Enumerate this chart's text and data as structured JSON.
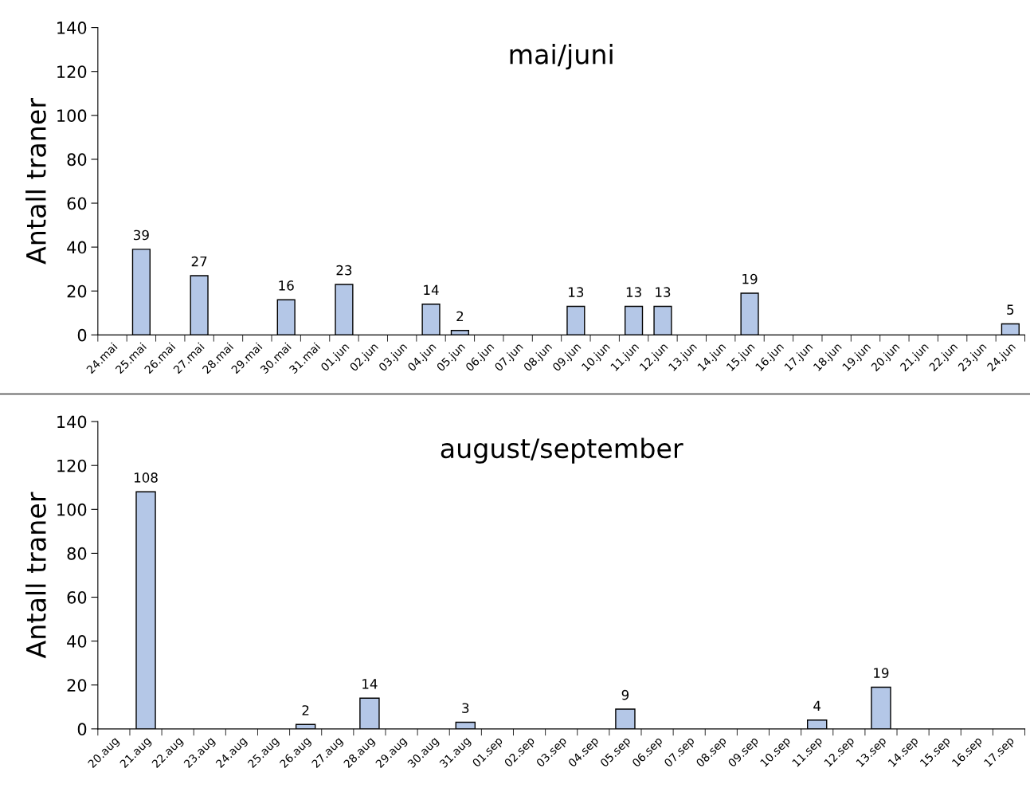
{
  "chart_data": [
    {
      "type": "bar",
      "title": "mai/juni",
      "ylabel": "Antall traner",
      "categories": [
        "24.mai",
        "25.mai",
        "26.mai",
        "27.mai",
        "28.mai",
        "29.mai",
        "30.mai",
        "31.mai",
        "01.jun",
        "02.jun",
        "03.jun",
        "04.jun",
        "05.jun",
        "06.jun",
        "07.jun",
        "08.jun",
        "09.jun",
        "10.jun",
        "11.jun",
        "12.jun",
        "13.jun",
        "14.jun",
        "15.jun",
        "16.jun",
        "17.jun",
        "18.jun",
        "19.jun",
        "20.jun",
        "21.jun",
        "22.jun",
        "23.jun",
        "24.jun"
      ],
      "values": [
        0,
        39,
        0,
        27,
        0,
        0,
        16,
        0,
        23,
        0,
        0,
        14,
        2,
        0,
        0,
        0,
        13,
        0,
        13,
        13,
        0,
        0,
        19,
        0,
        0,
        0,
        0,
        0,
        0,
        0,
        0,
        5
      ],
      "value_labels": [
        null,
        "39",
        null,
        "27",
        null,
        null,
        "16",
        null,
        "23",
        null,
        null,
        "14",
        "2",
        null,
        null,
        null,
        "13",
        null,
        "13",
        "13",
        null,
        null,
        "19",
        null,
        null,
        null,
        null,
        null,
        null,
        null,
        null,
        "5"
      ],
      "color": "#b4c7e7",
      "ylim": [
        0,
        140
      ],
      "yticks": [
        0,
        20,
        40,
        60,
        80,
        100,
        120,
        140
      ],
      "grid": false,
      "legend": false
    },
    {
      "type": "bar",
      "title": "august/september",
      "ylabel": "Antall traner",
      "categories": [
        "20.aug",
        "21.aug",
        "22.aug",
        "23.aug",
        "24.aug",
        "25.aug",
        "26.aug",
        "27.aug",
        "28.aug",
        "29.aug",
        "30.aug",
        "31.aug",
        "01.sep",
        "02.sep",
        "03.sep",
        "04.sep",
        "05.sep",
        "06.sep",
        "07.sep",
        "08.sep",
        "09.sep",
        "10.sep",
        "11.sep",
        "12.sep",
        "13.sep",
        "14.sep",
        "15.sep",
        "16.sep",
        "17.sep"
      ],
      "values": [
        0,
        108,
        0,
        0,
        0,
        0,
        2,
        0,
        14,
        0,
        0,
        3,
        0,
        0,
        0,
        0,
        9,
        0,
        0,
        0,
        0,
        0,
        4,
        0,
        19,
        0,
        0,
        0,
        0
      ],
      "value_labels": [
        null,
        "108",
        null,
        null,
        null,
        null,
        "2",
        null,
        "14",
        null,
        null,
        "3",
        null,
        null,
        null,
        null,
        "9",
        null,
        null,
        null,
        null,
        null,
        "4",
        null,
        "19",
        null,
        null,
        null,
        null
      ],
      "color": "#b4c7e7",
      "ylim": [
        0,
        140
      ],
      "yticks": [
        0,
        20,
        40,
        60,
        80,
        100,
        120,
        140
      ],
      "grid": false,
      "legend": false
    }
  ]
}
